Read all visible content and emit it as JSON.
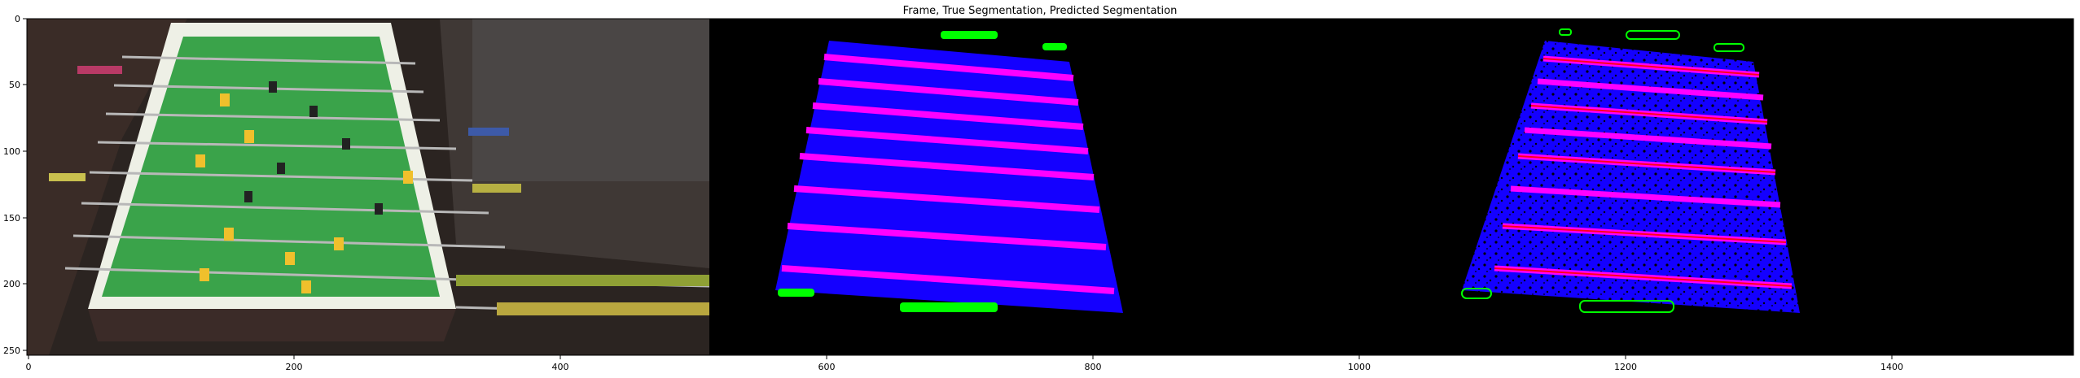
{
  "figure": {
    "title": "Frame, True Segmentation, Predicted Segmentation",
    "x_ticks": [
      "0",
      "200",
      "400",
      "600",
      "800",
      "1000",
      "1200",
      "1400"
    ],
    "y_ticks": [
      "0",
      "50",
      "100",
      "150",
      "200",
      "250"
    ]
  },
  "colors": {
    "table_blue": "#1400ff",
    "rod_magenta": "#ff00ff",
    "rod_red": "#ff0019",
    "goal_green": "#00ff00",
    "frame_dark": "#2a2320",
    "field_green": "#3aa34a"
  },
  "panels": [
    "frame",
    "true-segmentation",
    "predicted-segmentation"
  ]
}
